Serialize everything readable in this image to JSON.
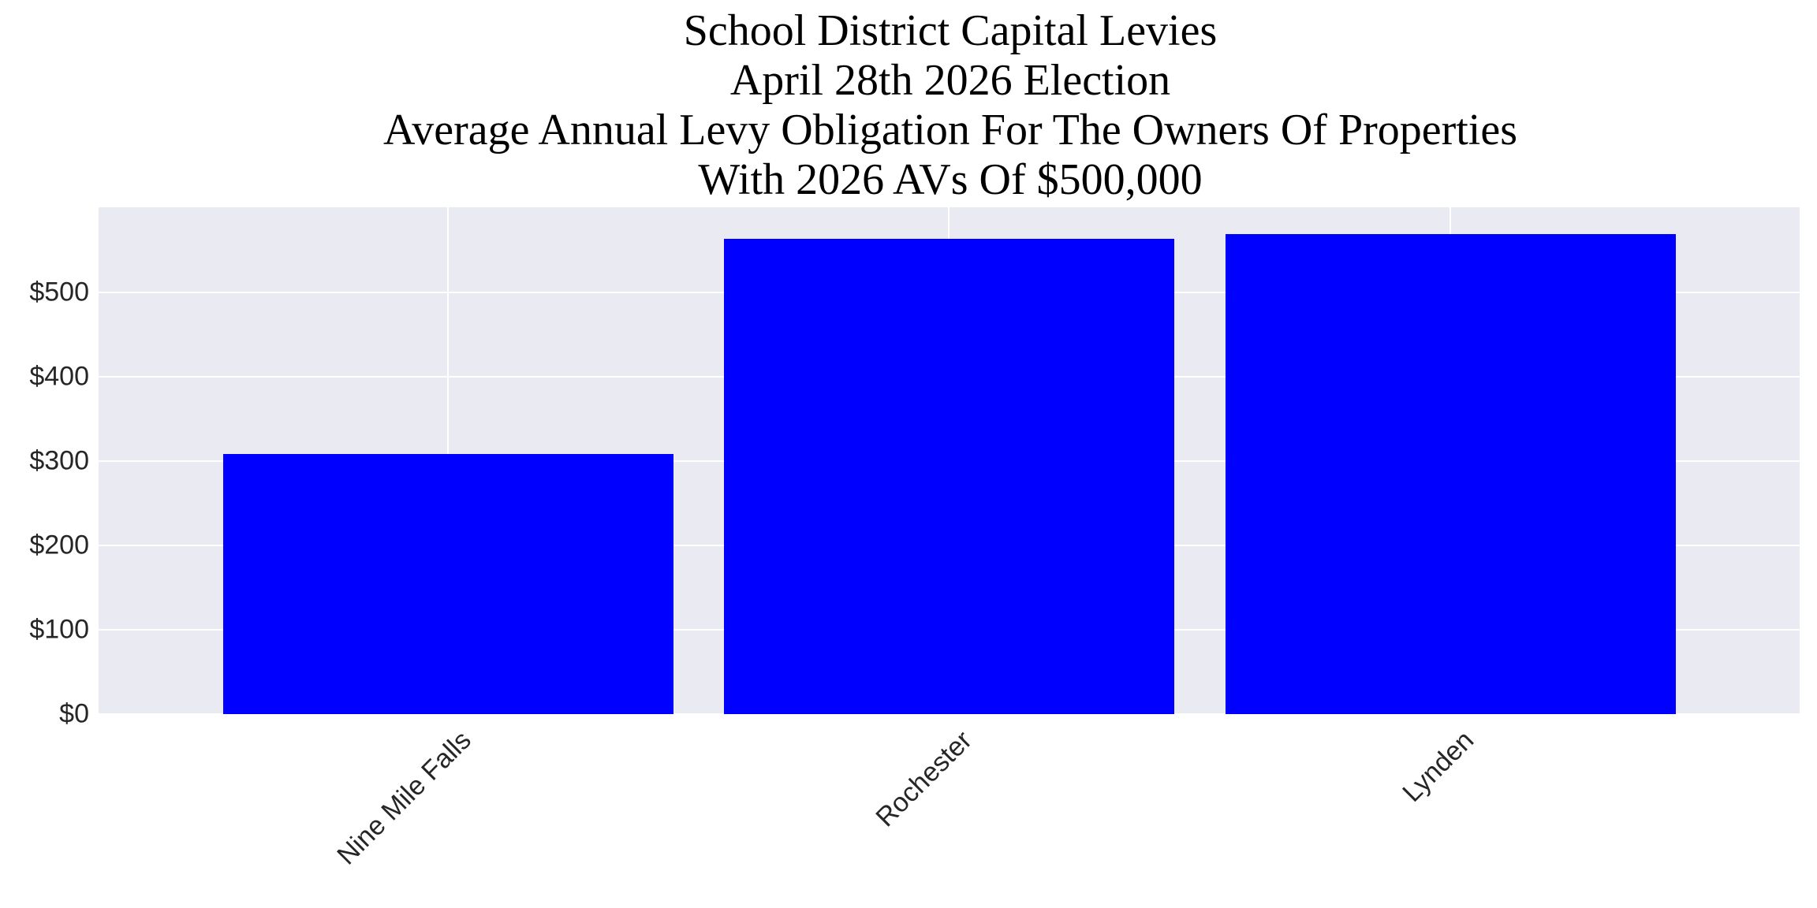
{
  "chart_data": {
    "type": "bar",
    "title": "School District Capital Levies\nApril 28th 2026 Election\nAverage Annual Levy Obligation For The Owners Of Properties\nWith 2026 AVs Of $500,000",
    "title_lines": [
      "School District Capital Levies",
      "April 28th 2026 Election",
      "Average Annual Levy Obligation For The Owners Of Properties",
      "With 2026 AVs Of $500,000"
    ],
    "categories": [
      "Nine Mile Falls",
      "Rochester",
      "Lynden"
    ],
    "values": [
      308,
      564,
      569
    ],
    "xlabel": "",
    "ylabel": "",
    "ylim": [
      0,
      601
    ],
    "yticks": [
      0,
      100,
      200,
      300,
      400,
      500
    ],
    "ytick_labels": [
      "$0",
      "$100",
      "$200",
      "$300",
      "$400",
      "$500"
    ],
    "grid": true,
    "legend": null,
    "bar_color": "#0000ff",
    "background_color": "#eaeaf2"
  }
}
